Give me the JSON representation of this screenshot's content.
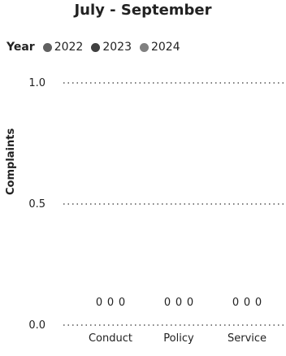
{
  "chart_data": {
    "type": "bar",
    "title": "July - September",
    "ylabel": "Complaints",
    "xlabel": "",
    "legend_title": "Year",
    "legend_position": "top-left",
    "grid": true,
    "categories": [
      "Conduct",
      "Policy",
      "Service"
    ],
    "series": [
      {
        "name": "2022",
        "values": [
          0,
          0,
          0
        ],
        "color": "#606060"
      },
      {
        "name": "2023",
        "values": [
          0,
          0,
          0
        ],
        "color": "#404040"
      },
      {
        "name": "2024",
        "values": [
          0,
          0,
          0
        ],
        "color": "#808080"
      }
    ],
    "yticks": [
      "0.0",
      "0.5",
      "1.0"
    ],
    "ylim": [
      0,
      1
    ]
  }
}
